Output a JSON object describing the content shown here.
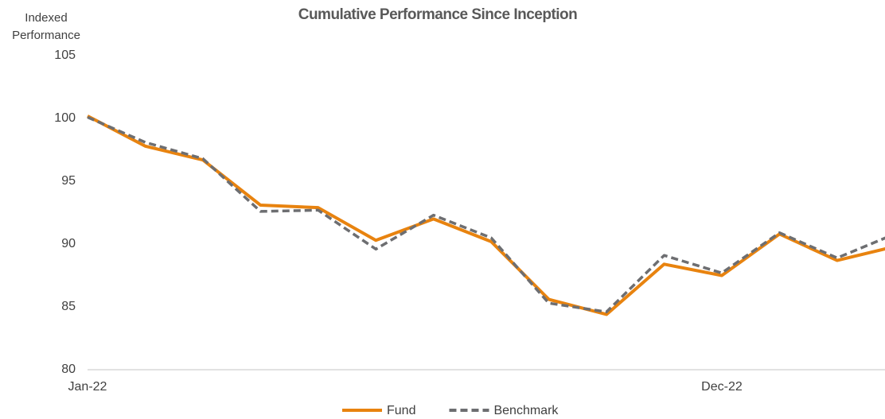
{
  "chart_data": {
    "type": "line",
    "title": "Cumulative Performance Since Inception",
    "y_label": "Indexed Performance",
    "categories": [
      "Jan-22",
      null,
      null,
      null,
      null,
      null,
      null,
      null,
      null,
      null,
      null,
      "Dec-22",
      null,
      null,
      null
    ],
    "series": [
      {
        "name": "Fund",
        "color": "#e8830f",
        "dash": false,
        "values": [
          100.2,
          97.8,
          96.7,
          93.1,
          92.9,
          90.3,
          92.0,
          90.2,
          85.6,
          84.4,
          88.4,
          87.5,
          90.8,
          88.7,
          89.8
        ]
      },
      {
        "name": "Benchmark",
        "color": "#6d6e71",
        "dash": true,
        "values": [
          100.1,
          98.1,
          96.8,
          92.6,
          92.7,
          89.6,
          92.3,
          90.5,
          85.3,
          84.6,
          89.1,
          87.7,
          90.9,
          88.9,
          90.8
        ]
      }
    ],
    "ylim": [
      80,
      105
    ],
    "yticks": [
      80,
      85,
      90,
      95,
      100,
      105
    ],
    "grid": false,
    "legend": "bottom"
  }
}
